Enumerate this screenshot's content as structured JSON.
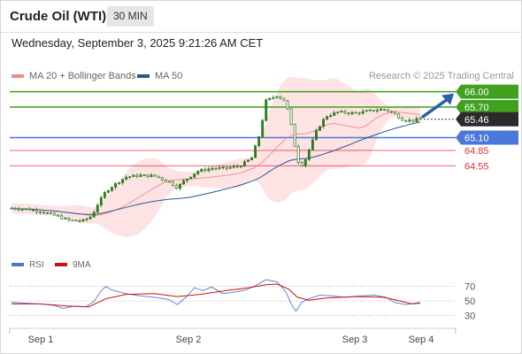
{
  "header": {
    "title": "Crude Oil (WTI)",
    "timeframe": "30 MIN",
    "datetime": "Wednesday, September 3, 2025 9:21:26 AM CET",
    "credit": "Research © 2025 Trading Central"
  },
  "legend": {
    "bollinger": {
      "label": "MA 20 + Bollinger Bands",
      "color": "#f08a8a"
    },
    "ma50": {
      "label": "MA 50",
      "color": "#2c5597"
    }
  },
  "colors": {
    "resistance": "#3fa11e",
    "pivot": "#4a78d8",
    "support": "#e0303d",
    "band_fill": "#fde3e3",
    "candle": "#2e7d1f",
    "rsi": "#4a78d8",
    "rsi_ma": "#cc1111"
  },
  "chart_data": [
    {
      "type": "line",
      "name": "price",
      "x": [
        "Sep 1",
        "Sep 2",
        "Sep 3",
        "Sep 4"
      ],
      "levels": {
        "resistance": [
          66.0,
          65.7
        ],
        "last_price": 65.46,
        "pivot": 65.1,
        "support": [
          64.85,
          64.55
        ]
      },
      "ylim": [
        63.15,
        66.15
      ],
      "arrow": "up",
      "close_path": [
        {
          "t": 0,
          "v": 63.72
        },
        {
          "t": 0.5,
          "v": 63.7
        },
        {
          "t": 1.0,
          "v": 63.66
        },
        {
          "t": 1.5,
          "v": 63.58
        },
        {
          "t": 2.0,
          "v": 63.48
        },
        {
          "t": 2.5,
          "v": 63.47
        },
        {
          "t": 2.8,
          "v": 63.56
        },
        {
          "t": 3.0,
          "v": 63.78
        },
        {
          "t": 3.3,
          "v": 64.05
        },
        {
          "t": 3.6,
          "v": 64.18
        },
        {
          "t": 4.0,
          "v": 64.33
        },
        {
          "t": 4.5,
          "v": 64.36
        },
        {
          "t": 5.0,
          "v": 64.35
        },
        {
          "t": 5.5,
          "v": 64.24
        },
        {
          "t": 5.8,
          "v": 64.12
        },
        {
          "t": 6.0,
          "v": 64.24
        },
        {
          "t": 6.5,
          "v": 64.44
        },
        {
          "t": 7.0,
          "v": 64.5
        },
        {
          "t": 7.5,
          "v": 64.5
        },
        {
          "t": 8.0,
          "v": 64.55
        },
        {
          "t": 8.4,
          "v": 64.7
        },
        {
          "t": 8.7,
          "v": 65.2
        },
        {
          "t": 8.9,
          "v": 65.82
        },
        {
          "t": 9.3,
          "v": 65.93
        },
        {
          "t": 9.6,
          "v": 65.8
        },
        {
          "t": 9.8,
          "v": 65.3
        },
        {
          "t": 10.0,
          "v": 64.65
        },
        {
          "t": 10.2,
          "v": 64.55
        },
        {
          "t": 10.4,
          "v": 64.85
        },
        {
          "t": 10.7,
          "v": 65.27
        },
        {
          "t": 11.0,
          "v": 65.52
        },
        {
          "t": 11.4,
          "v": 65.6
        },
        {
          "t": 12.0,
          "v": 65.58
        },
        {
          "t": 12.5,
          "v": 65.62
        },
        {
          "t": 13.0,
          "v": 65.66
        },
        {
          "t": 13.3,
          "v": 65.6
        },
        {
          "t": 13.7,
          "v": 65.45
        },
        {
          "t": 14.0,
          "v": 65.43
        },
        {
          "t": 14.3,
          "v": 65.47
        }
      ]
    },
    {
      "type": "line",
      "name": "rsi",
      "series": [
        {
          "name": "RSI"
        },
        {
          "name": "9MA"
        }
      ],
      "ylim": [
        20,
        85
      ],
      "yticks": [
        70,
        50,
        30
      ],
      "rsi": [
        {
          "t": 0,
          "v": 48
        },
        {
          "t": 0.5,
          "v": 47
        },
        {
          "t": 1.0,
          "v": 46
        },
        {
          "t": 1.5,
          "v": 44
        },
        {
          "t": 1.8,
          "v": 40
        },
        {
          "t": 2.2,
          "v": 43
        },
        {
          "t": 2.6,
          "v": 42
        },
        {
          "t": 2.9,
          "v": 50
        },
        {
          "t": 3.1,
          "v": 62
        },
        {
          "t": 3.3,
          "v": 70
        },
        {
          "t": 3.5,
          "v": 65
        },
        {
          "t": 4.0,
          "v": 60
        },
        {
          "t": 4.5,
          "v": 57
        },
        {
          "t": 5.0,
          "v": 55
        },
        {
          "t": 5.5,
          "v": 52
        },
        {
          "t": 5.8,
          "v": 45
        },
        {
          "t": 6.1,
          "v": 55
        },
        {
          "t": 6.4,
          "v": 68
        },
        {
          "t": 6.7,
          "v": 64
        },
        {
          "t": 7.0,
          "v": 69
        },
        {
          "t": 7.4,
          "v": 60
        },
        {
          "t": 7.8,
          "v": 62
        },
        {
          "t": 8.2,
          "v": 65
        },
        {
          "t": 8.6,
          "v": 72
        },
        {
          "t": 8.9,
          "v": 79
        },
        {
          "t": 9.3,
          "v": 76
        },
        {
          "t": 9.6,
          "v": 62
        },
        {
          "t": 9.8,
          "v": 45
        },
        {
          "t": 9.95,
          "v": 36
        },
        {
          "t": 10.15,
          "v": 48
        },
        {
          "t": 10.4,
          "v": 53
        },
        {
          "t": 10.8,
          "v": 58
        },
        {
          "t": 11.2,
          "v": 57
        },
        {
          "t": 11.7,
          "v": 55
        },
        {
          "t": 12.2,
          "v": 57
        },
        {
          "t": 12.7,
          "v": 58
        },
        {
          "t": 13.1,
          "v": 55
        },
        {
          "t": 13.4,
          "v": 48
        },
        {
          "t": 13.8,
          "v": 45
        },
        {
          "t": 14.3,
          "v": 48
        }
      ],
      "ma9": [
        {
          "t": 0,
          "v": 46
        },
        {
          "t": 1.0,
          "v": 46
        },
        {
          "t": 2.0,
          "v": 43
        },
        {
          "t": 2.7,
          "v": 42
        },
        {
          "t": 3.3,
          "v": 53
        },
        {
          "t": 4.0,
          "v": 59
        },
        {
          "t": 5.0,
          "v": 60
        },
        {
          "t": 5.8,
          "v": 56
        },
        {
          "t": 6.6,
          "v": 59
        },
        {
          "t": 7.5,
          "v": 64
        },
        {
          "t": 8.3,
          "v": 68
        },
        {
          "t": 8.9,
          "v": 72
        },
        {
          "t": 9.3,
          "v": 73
        },
        {
          "t": 9.7,
          "v": 66
        },
        {
          "t": 10.0,
          "v": 55
        },
        {
          "t": 10.4,
          "v": 51
        },
        {
          "t": 11.0,
          "v": 54
        },
        {
          "t": 12.0,
          "v": 56
        },
        {
          "t": 13.0,
          "v": 55
        },
        {
          "t": 13.6,
          "v": 50
        },
        {
          "t": 14.0,
          "v": 46
        },
        {
          "t": 14.3,
          "v": 47
        }
      ]
    }
  ]
}
